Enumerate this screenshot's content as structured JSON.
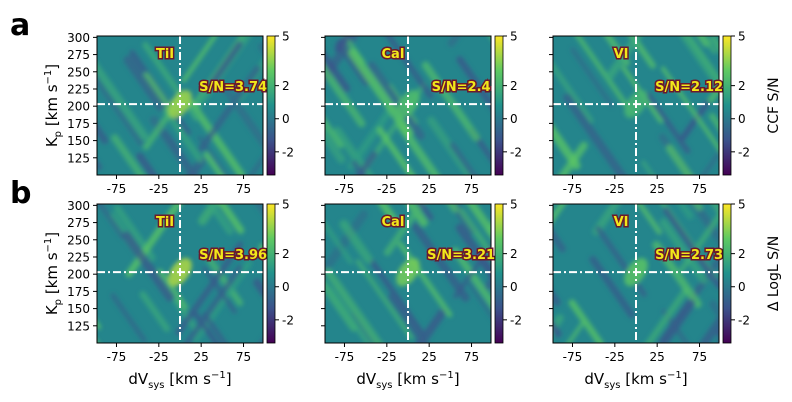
{
  "chart_data": {
    "type": "heatmap",
    "panel_labels": [
      "a",
      "b"
    ],
    "x_ticks": [
      -75,
      -25,
      25,
      75
    ],
    "x_tick_labels": [
      "-75",
      "-25",
      "25",
      "75"
    ],
    "y_ticks": [
      125,
      150,
      175,
      200,
      225,
      250,
      275,
      300
    ],
    "y_tick_labels": [
      "125",
      "150",
      "175",
      "200",
      "225",
      "250",
      "275",
      "300"
    ],
    "xlim": [
      -98,
      98
    ],
    "ylim": [
      100,
      302
    ],
    "cbar_ticks": [
      -2,
      0,
      2,
      5
    ],
    "cbar_tick_labels": [
      "-2",
      "0",
      "2",
      "5"
    ],
    "cbar_range": [
      -3.4,
      5
    ],
    "colormap": [
      "#440154",
      "#3b528b",
      "#21918c",
      "#5ec962",
      "#fde725"
    ],
    "marker_color": "#ffffff",
    "label_text_color": "#f2e81a",
    "label_box_color": "#6b1a2c",
    "rows": [
      {
        "id": "a",
        "ylabel": "K",
        "ylabel_sub": "p",
        "ylabel_rest": " [km s",
        "ylabel_sup": "−1",
        "ylabel_end": "]",
        "cbar_label": "CCF S/N",
        "panels": [
          {
            "species": "TiI",
            "snr_label": "S/N=3.74",
            "kp_peak": 203,
            "vsys_peak": 0,
            "peak_snr": 3.74
          },
          {
            "species": "CaI",
            "snr_label": "S/N=2.4",
            "kp_peak": 203,
            "vsys_peak": 0,
            "peak_snr": 2.4
          },
          {
            "species": "VI",
            "snr_label": "S/N=2.12",
            "kp_peak": 203,
            "vsys_peak": 0,
            "peak_snr": 2.12
          }
        ]
      },
      {
        "id": "b",
        "ylabel": "K",
        "ylabel_sub": "p",
        "ylabel_rest": " [km s",
        "ylabel_sup": "−1",
        "ylabel_end": "]",
        "cbar_label": "Δ LogL S/N",
        "xlabel": "dV",
        "xlabel_sub": "sys",
        "xlabel_rest": " [km s",
        "xlabel_sup": "−1",
        "xlabel_end": "]",
        "panels": [
          {
            "species": "TiI",
            "snr_label": "S/N=3.96",
            "kp_peak": 203,
            "vsys_peak": 0,
            "peak_snr": 3.96
          },
          {
            "species": "CaI",
            "snr_label": "S/N=3.21",
            "kp_peak": 203,
            "vsys_peak": 0,
            "peak_snr": 3.21
          },
          {
            "species": "VI",
            "snr_label": "S/N=2.73",
            "kp_peak": 203,
            "vsys_peak": 0,
            "peak_snr": 2.73
          }
        ]
      }
    ]
  }
}
